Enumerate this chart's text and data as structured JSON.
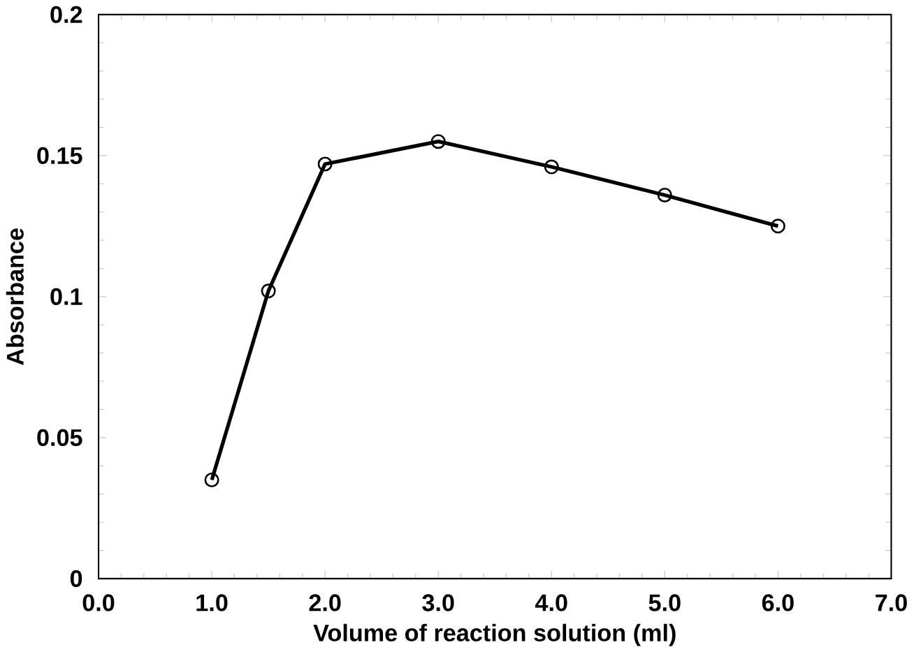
{
  "chart_data": {
    "type": "line",
    "xlabel": "Volume of reaction solution (ml)",
    "ylabel": "Absorbance",
    "x": [
      1.0,
      1.5,
      2.0,
      3.0,
      4.0,
      5.0,
      6.0
    ],
    "series": [
      {
        "color": "#000000",
        "values": [
          0.035,
          0.102,
          0.147,
          0.155,
          0.146,
          0.136,
          0.125
        ]
      }
    ],
    "xlim": [
      0,
      7
    ],
    "ylim": [
      0,
      0.2
    ],
    "xticks": [
      {
        "value": 0,
        "label": "0.0"
      },
      {
        "value": 1,
        "label": "1.0"
      },
      {
        "value": 2,
        "label": "2.0"
      },
      {
        "value": 3,
        "label": "3.0"
      },
      {
        "value": 4,
        "label": "4.0"
      },
      {
        "value": 5,
        "label": "5.0"
      },
      {
        "value": 6,
        "label": "6.0"
      },
      {
        "value": 7,
        "label": "7.0"
      }
    ],
    "yticks": [
      0,
      0.05,
      0.1,
      0.15,
      0.2
    ],
    "marker": "circle",
    "line_style": "solid"
  }
}
